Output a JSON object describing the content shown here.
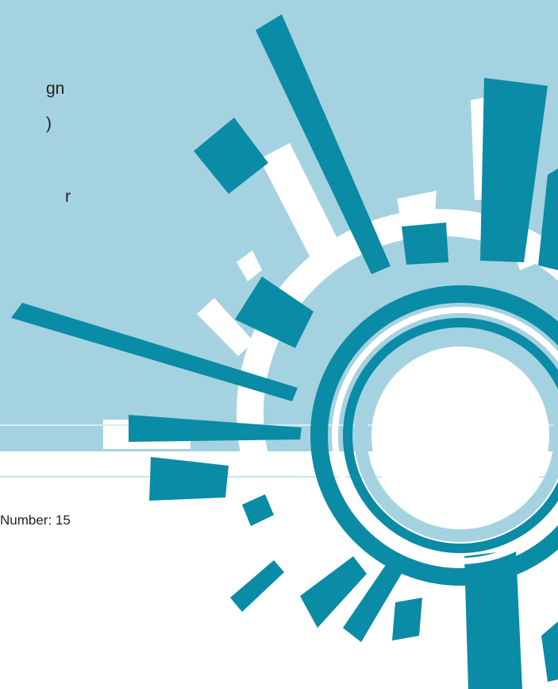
{
  "page_fragments": {
    "line_1": "gn",
    "line_2": ")",
    "line_3": "r"
  },
  "footer": {
    "number_text": "Number: 15"
  },
  "colors": {
    "band": "#a5d2e0",
    "teal": "#0a8ba6",
    "white": "#ffffff"
  }
}
